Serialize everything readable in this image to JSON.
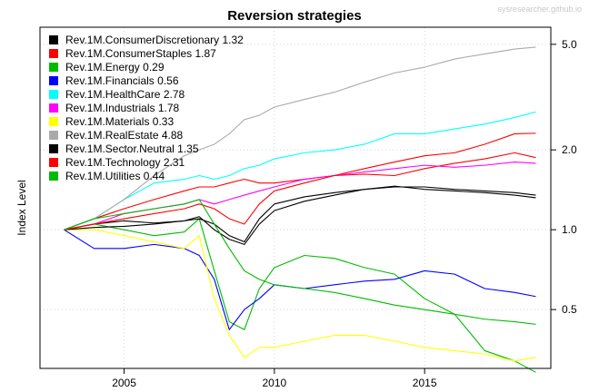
{
  "watermark": "sysresearcher.github.io",
  "chart_data": {
    "type": "line",
    "title": "Reversion strategies",
    "xlabel": "",
    "ylabel": "Index Level",
    "y_scale": "log",
    "xlim": [
      2002.2,
      2019.2
    ],
    "ylim": [
      0.3,
      5.8
    ],
    "x_ticks": [
      2005,
      2010,
      2015
    ],
    "x_tick_labels": [
      "2005",
      "2010",
      "2015"
    ],
    "y_ticks": [
      0.5,
      1.0,
      2.0,
      5.0
    ],
    "y_tick_labels": [
      "0.5",
      "1.0",
      "2.0",
      "5.0"
    ],
    "grid": true,
    "legend_position": "top-left",
    "x": [
      2003.0,
      2004.0,
      2005.0,
      2006.0,
      2007.0,
      2007.5,
      2008.0,
      2008.5,
      2009.0,
      2009.5,
      2010.0,
      2011.0,
      2012.0,
      2013.0,
      2014.0,
      2015.0,
      2016.0,
      2017.0,
      2018.0,
      2018.7
    ],
    "series": [
      {
        "name": "Rev.1M.ConsumerDiscretionary 1.32",
        "color": "#000000",
        "values": [
          1.0,
          1.05,
          1.08,
          1.06,
          1.08,
          1.12,
          1.0,
          0.92,
          0.88,
          1.05,
          1.18,
          1.28,
          1.35,
          1.42,
          1.46,
          1.42,
          1.4,
          1.38,
          1.35,
          1.32
        ]
      },
      {
        "name": "Rev.1M.ConsumerStaples 1.87",
        "color": "#ff0000",
        "values": [
          1.0,
          1.1,
          1.2,
          1.3,
          1.4,
          1.45,
          1.45,
          1.5,
          1.55,
          1.5,
          1.5,
          1.55,
          1.6,
          1.62,
          1.6,
          1.7,
          1.78,
          1.85,
          1.95,
          1.87
        ]
      },
      {
        "name": "Rev.1M.Energy 0.29",
        "color": "#00bb00",
        "values": [
          1.0,
          1.05,
          1.0,
          0.95,
          0.98,
          1.1,
          0.7,
          0.45,
          0.42,
          0.6,
          0.72,
          0.8,
          0.78,
          0.72,
          0.68,
          0.55,
          0.48,
          0.35,
          0.32,
          0.29
        ]
      },
      {
        "name": "Rev.1M.Financials 0.56",
        "color": "#0000ff",
        "values": [
          1.0,
          0.85,
          0.85,
          0.88,
          0.85,
          0.8,
          0.65,
          0.42,
          0.5,
          0.55,
          0.62,
          0.6,
          0.62,
          0.64,
          0.65,
          0.7,
          0.68,
          0.6,
          0.58,
          0.56
        ]
      },
      {
        "name": "Rev.1M.HealthCare 2.78",
        "color": "#00ffff",
        "values": [
          1.0,
          1.1,
          1.3,
          1.5,
          1.55,
          1.6,
          1.55,
          1.6,
          1.7,
          1.75,
          1.85,
          1.95,
          2.0,
          2.1,
          2.3,
          2.3,
          2.4,
          2.5,
          2.65,
          2.78
        ]
      },
      {
        "name": "Rev.1M.Industrials 1.78",
        "color": "#ff00ff",
        "values": [
          1.0,
          1.05,
          1.15,
          1.2,
          1.25,
          1.3,
          1.25,
          1.3,
          1.35,
          1.4,
          1.45,
          1.55,
          1.6,
          1.65,
          1.7,
          1.75,
          1.72,
          1.75,
          1.8,
          1.78
        ]
      },
      {
        "name": "Rev.1M.Materials 0.33",
        "color": "#ffff00",
        "values": [
          1.0,
          1.0,
          0.95,
          0.9,
          0.85,
          0.95,
          0.55,
          0.4,
          0.33,
          0.36,
          0.36,
          0.38,
          0.4,
          0.4,
          0.38,
          0.36,
          0.35,
          0.34,
          0.32,
          0.33
        ]
      },
      {
        "name": "Rev.1M.RealEstate 4.88",
        "color": "#aaaaaa",
        "values": [
          1.0,
          1.1,
          1.3,
          1.6,
          1.9,
          2.0,
          2.1,
          2.3,
          2.6,
          2.7,
          2.9,
          3.1,
          3.3,
          3.6,
          3.9,
          4.1,
          4.4,
          4.6,
          4.8,
          4.88
        ]
      },
      {
        "name": "Rev.1M.Sector.Neutral 1.35",
        "color": "#000000",
        "values": [
          1.0,
          1.02,
          1.03,
          1.05,
          1.08,
          1.1,
          1.05,
          0.95,
          0.9,
          1.1,
          1.25,
          1.33,
          1.38,
          1.42,
          1.45,
          1.45,
          1.42,
          1.4,
          1.38,
          1.35
        ]
      },
      {
        "name": "Rev.1M.Technology 2.31",
        "color": "#ff0000",
        "values": [
          1.0,
          1.05,
          1.1,
          1.15,
          1.2,
          1.25,
          1.2,
          1.1,
          1.05,
          1.25,
          1.4,
          1.5,
          1.6,
          1.7,
          1.8,
          1.9,
          1.95,
          2.1,
          2.3,
          2.31
        ]
      },
      {
        "name": "Rev.1M.Utilities 0.44",
        "color": "#00bb00",
        "values": [
          1.0,
          1.1,
          1.15,
          1.2,
          1.25,
          1.3,
          1.05,
          0.85,
          0.7,
          0.65,
          0.62,
          0.6,
          0.58,
          0.55,
          0.52,
          0.5,
          0.48,
          0.46,
          0.45,
          0.44
        ]
      }
    ]
  }
}
